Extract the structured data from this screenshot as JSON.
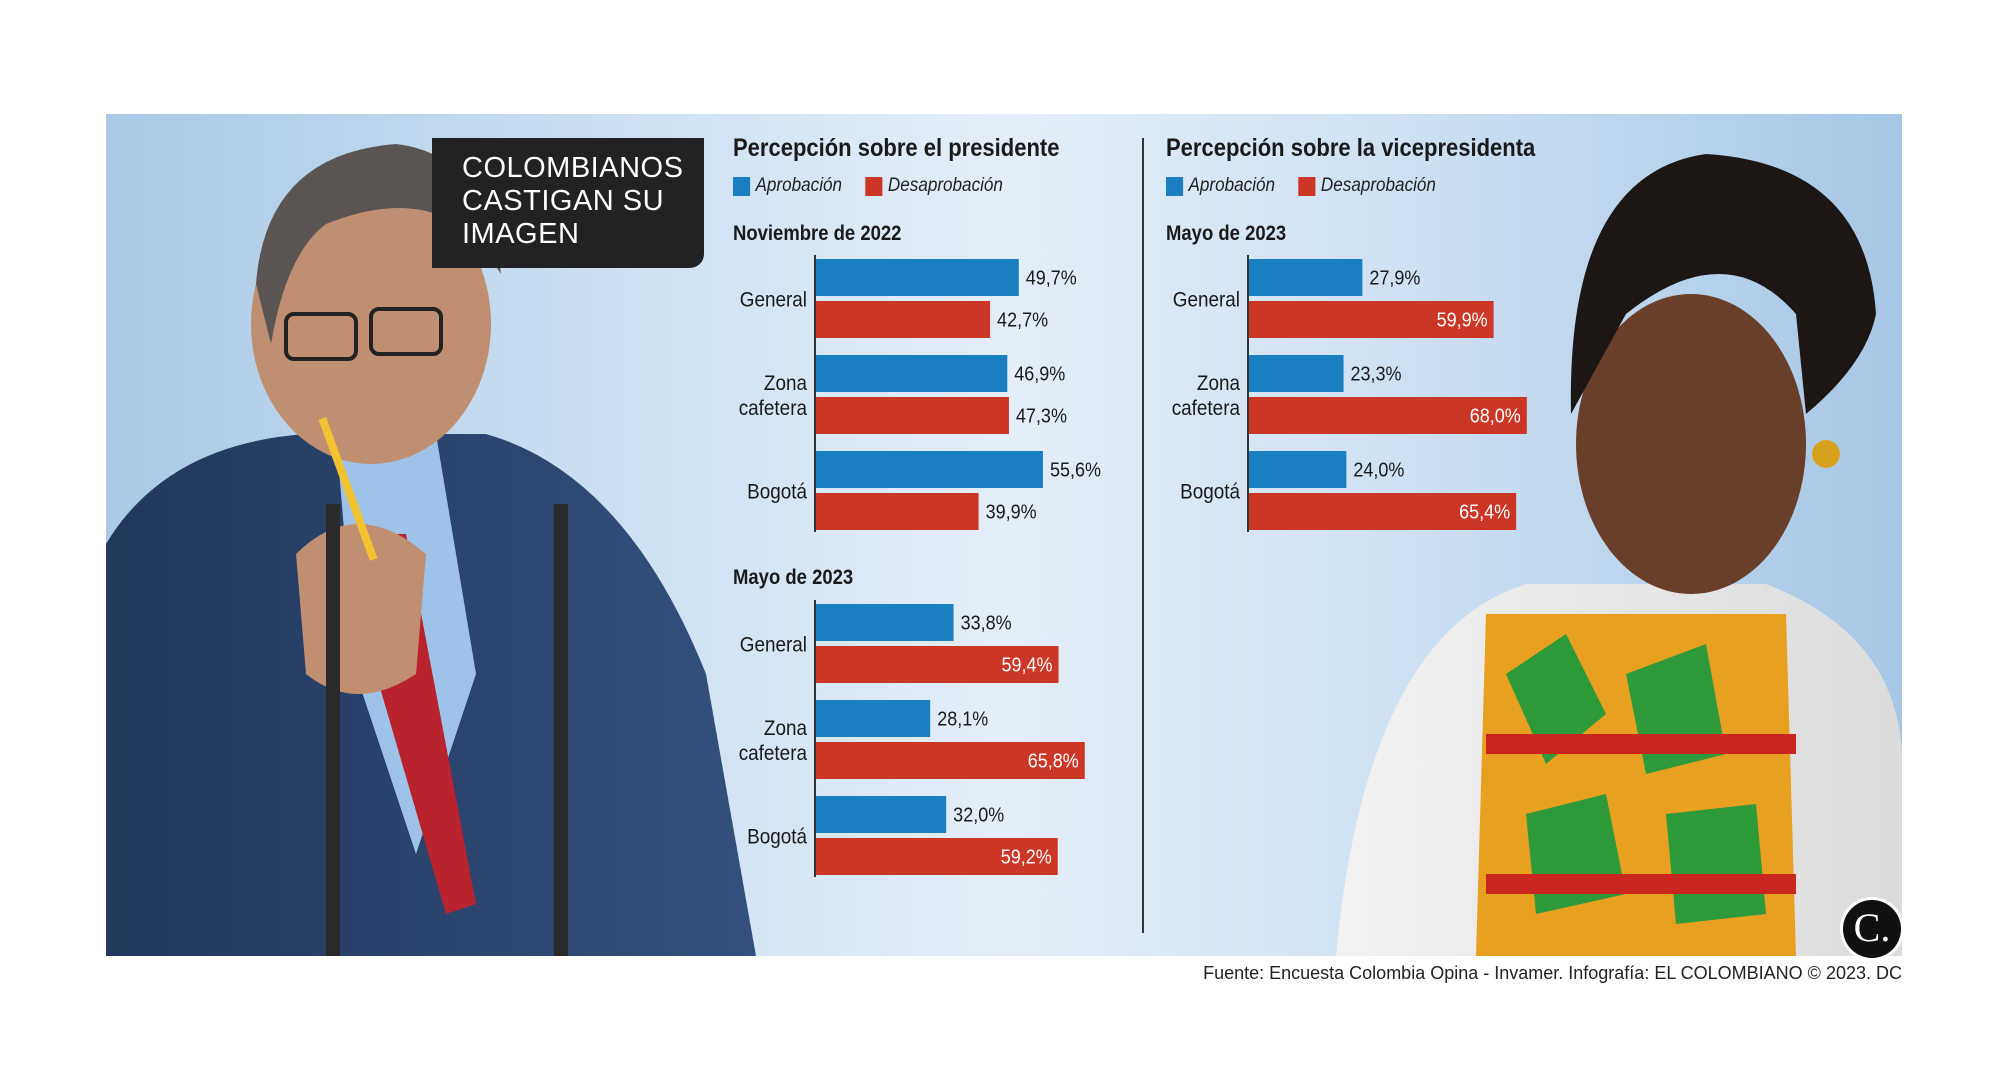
{
  "headline": [
    "COLOMBIANOS",
    "CASTIGAN SU",
    "IMAGEN"
  ],
  "colors": {
    "approval": "#1a7fc1",
    "disapproval": "#cc3627",
    "headline_bg": "#222124"
  },
  "legend": {
    "approval": "Aprobación",
    "disapproval": "Desaprobación"
  },
  "source": "Fuente: Encuesta Colombia Opina - Invamer. Infografía: EL COLOMBIANO © 2023. DC",
  "logo_text": "C.",
  "chart_data": [
    {
      "type": "bar",
      "title": "Percepción sobre el presidente",
      "period": "Noviembre de 2022",
      "categories": [
        "General",
        "Zona cafetera",
        "Bogotá"
      ],
      "series": [
        {
          "name": "Aprobación",
          "values": [
            49.7,
            46.9,
            55.6
          ],
          "labels": [
            "49,7%",
            "46,9%",
            "55,6%"
          ]
        },
        {
          "name": "Desaprobación",
          "values": [
            42.7,
            47.3,
            39.9
          ],
          "labels": [
            "42,7%",
            "47,3%",
            "39,9%"
          ]
        }
      ]
    },
    {
      "type": "bar",
      "title": "Percepción sobre el presidente",
      "period": "Mayo de 2023",
      "categories": [
        "General",
        "Zona cafetera",
        "Bogotá"
      ],
      "series": [
        {
          "name": "Aprobación",
          "values": [
            33.8,
            28.1,
            32.0
          ],
          "labels": [
            "33,8%",
            "28,1%",
            "32,0%"
          ]
        },
        {
          "name": "Desaprobación",
          "values": [
            59.4,
            65.8,
            59.2
          ],
          "labels": [
            "59,4%",
            "65,8%",
            "59,2%"
          ]
        }
      ]
    },
    {
      "type": "bar",
      "title": "Percepción sobre la vicepresidenta",
      "period": "Mayo de 2023",
      "categories": [
        "General",
        "Zona cafetera",
        "Bogotá"
      ],
      "series": [
        {
          "name": "Aprobación",
          "values": [
            27.9,
            23.3,
            24.0
          ],
          "labels": [
            "27,9%",
            "23,3%",
            "24,0%"
          ]
        },
        {
          "name": "Desaprobación",
          "values": [
            59.9,
            68.0,
            65.4
          ],
          "labels": [
            "59,9%",
            "68,0%",
            "65,4%"
          ]
        }
      ]
    }
  ]
}
